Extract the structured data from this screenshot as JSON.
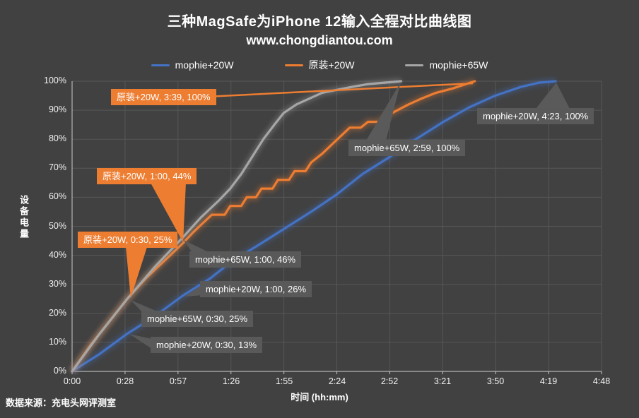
{
  "title": "三种MagSafe为iPhone 12输入全程对比曲线图",
  "subtitle": "www.chongdiantou.com",
  "source": "数据来源：充电头网评测室",
  "colors": {
    "background": "#414141",
    "grid": "#575757",
    "axis": "#b5b5b5",
    "blue": "#4472C4",
    "orange": "#ED7D31",
    "gray": "#A6A6A6",
    "annotation_gray": "#5a5a5a",
    "text": "#ffffff"
  },
  "legend": [
    {
      "label": "mophie+20W",
      "color": "#4472C4"
    },
    {
      "label": "原装+20W",
      "color": "#ED7D31"
    },
    {
      "label": "mophie+65W",
      "color": "#A6A6A6"
    }
  ],
  "chart_data": {
    "type": "line",
    "title": "三种MagSafe为iPhone 12输入全程对比曲线图",
    "xlabel": "时间 (hh:mm)",
    "ylabel": "设备电量",
    "x_unit": "minutes",
    "xlim": [
      0,
      288
    ],
    "ylim": [
      0,
      100
    ],
    "grid": true,
    "legend_position": "top",
    "x_ticks": [
      {
        "label": "0:00",
        "min": 0
      },
      {
        "label": "0:28",
        "min": 28.8
      },
      {
        "label": "0:57",
        "min": 57.6
      },
      {
        "label": "1:26",
        "min": 86.4
      },
      {
        "label": "1:55",
        "min": 115.2
      },
      {
        "label": "2:24",
        "min": 144
      },
      {
        "label": "2:52",
        "min": 172.8
      },
      {
        "label": "3:21",
        "min": 201.6
      },
      {
        "label": "3:50",
        "min": 230.4
      },
      {
        "label": "4:19",
        "min": 259.2
      },
      {
        "label": "4:48",
        "min": 288
      }
    ],
    "y_ticks": [
      "0%",
      "10%",
      "20%",
      "30%",
      "40%",
      "50%",
      "60%",
      "70%",
      "80%",
      "90%",
      "100%"
    ],
    "series": [
      {
        "name": "mophie+20W",
        "color": "#4472C4",
        "points": [
          [
            0,
            0
          ],
          [
            15,
            6
          ],
          [
            30,
            13
          ],
          [
            45,
            19
          ],
          [
            60,
            26
          ],
          [
            75,
            32
          ],
          [
            87,
            38
          ],
          [
            100,
            43
          ],
          [
            115,
            49
          ],
          [
            130,
            55
          ],
          [
            144,
            61
          ],
          [
            158,
            68
          ],
          [
            173,
            74
          ],
          [
            187,
            80
          ],
          [
            202,
            86
          ],
          [
            216,
            91
          ],
          [
            230,
            95
          ],
          [
            244,
            98
          ],
          [
            254,
            99.5
          ],
          [
            263,
            100
          ]
        ]
      },
      {
        "name": "原装+20W",
        "color": "#ED7D31",
        "points": [
          [
            0,
            0
          ],
          [
            10,
            9
          ],
          [
            20,
            17
          ],
          [
            30,
            25
          ],
          [
            40,
            32
          ],
          [
            50,
            38
          ],
          [
            60,
            44
          ],
          [
            66,
            48
          ],
          [
            71,
            51
          ],
          [
            76,
            54
          ],
          [
            83,
            54
          ],
          [
            86,
            57
          ],
          [
            92,
            57
          ],
          [
            95,
            60
          ],
          [
            100,
            60
          ],
          [
            103,
            63
          ],
          [
            109,
            63
          ],
          [
            112,
            66
          ],
          [
            118,
            66
          ],
          [
            121,
            69
          ],
          [
            127,
            69
          ],
          [
            130,
            72
          ],
          [
            136,
            75
          ],
          [
            141,
            78
          ],
          [
            146,
            81
          ],
          [
            151,
            84
          ],
          [
            157,
            84
          ],
          [
            161,
            86
          ],
          [
            167,
            86
          ],
          [
            171,
            88
          ],
          [
            177,
            90
          ],
          [
            183,
            92
          ],
          [
            190,
            94
          ],
          [
            198,
            96
          ],
          [
            207,
            97.5
          ],
          [
            219,
            100
          ]
        ]
      },
      {
        "name": "mophie+65W",
        "color": "#A6A6A6",
        "points": [
          [
            0,
            0
          ],
          [
            15,
            13
          ],
          [
            30,
            25
          ],
          [
            45,
            36
          ],
          [
            60,
            46
          ],
          [
            70,
            53
          ],
          [
            80,
            59
          ],
          [
            86,
            63
          ],
          [
            92,
            68
          ],
          [
            98,
            74
          ],
          [
            104,
            80
          ],
          [
            110,
            85
          ],
          [
            115,
            89
          ],
          [
            122,
            92
          ],
          [
            129,
            94
          ],
          [
            136,
            96
          ],
          [
            144,
            97
          ],
          [
            152,
            98
          ],
          [
            161,
            99
          ],
          [
            170,
            99.5
          ],
          [
            179,
            100
          ]
        ]
      }
    ],
    "key_points": [
      {
        "series": "原装+20W",
        "time": "0:30",
        "value": "25%"
      },
      {
        "series": "原装+20W",
        "time": "1:00",
        "value": "44%"
      },
      {
        "series": "原装+20W",
        "time": "3:39",
        "value": "100%"
      },
      {
        "series": "mophie+65W",
        "time": "0:30",
        "value": "25%"
      },
      {
        "series": "mophie+65W",
        "time": "1:00",
        "value": "46%"
      },
      {
        "series": "mophie+65W",
        "time": "2:59",
        "value": "100%"
      },
      {
        "series": "mophie+20W",
        "time": "0:30",
        "value": "13%"
      },
      {
        "series": "mophie+20W",
        "time": "1:00",
        "value": "26%"
      },
      {
        "series": "mophie+20W",
        "time": "4:23",
        "value": "100%"
      }
    ]
  },
  "annotations": [
    {
      "text": "原装+20W, 3:39, 100%",
      "style": "orange",
      "anchor_min": 219,
      "anchor_pct": 100
    },
    {
      "text": "mophie+20W, 4:23, 100%",
      "style": "gray",
      "anchor_min": 263,
      "anchor_pct": 100
    },
    {
      "text": "mophie+65W, 2:59, 100%",
      "style": "gray",
      "anchor_min": 179,
      "anchor_pct": 100
    },
    {
      "text": "原装+20W, 1:00, 44%",
      "style": "orange",
      "anchor_min": 60,
      "anchor_pct": 44
    },
    {
      "text": "原装+20W, 0:30, 25%",
      "style": "orange",
      "anchor_min": 30,
      "anchor_pct": 25
    },
    {
      "text": "mophie+65W, 1:00, 46%",
      "style": "gray",
      "anchor_min": 60,
      "anchor_pct": 46
    },
    {
      "text": "mophie+20W, 1:00, 26%",
      "style": "gray",
      "anchor_min": 60,
      "anchor_pct": 26
    },
    {
      "text": "mophie+65W, 0:30, 25%",
      "style": "gray",
      "anchor_min": 30,
      "anchor_pct": 25
    },
    {
      "text": "mophie+20W, 0:30, 13%",
      "style": "gray",
      "anchor_min": 30,
      "anchor_pct": 13
    }
  ]
}
